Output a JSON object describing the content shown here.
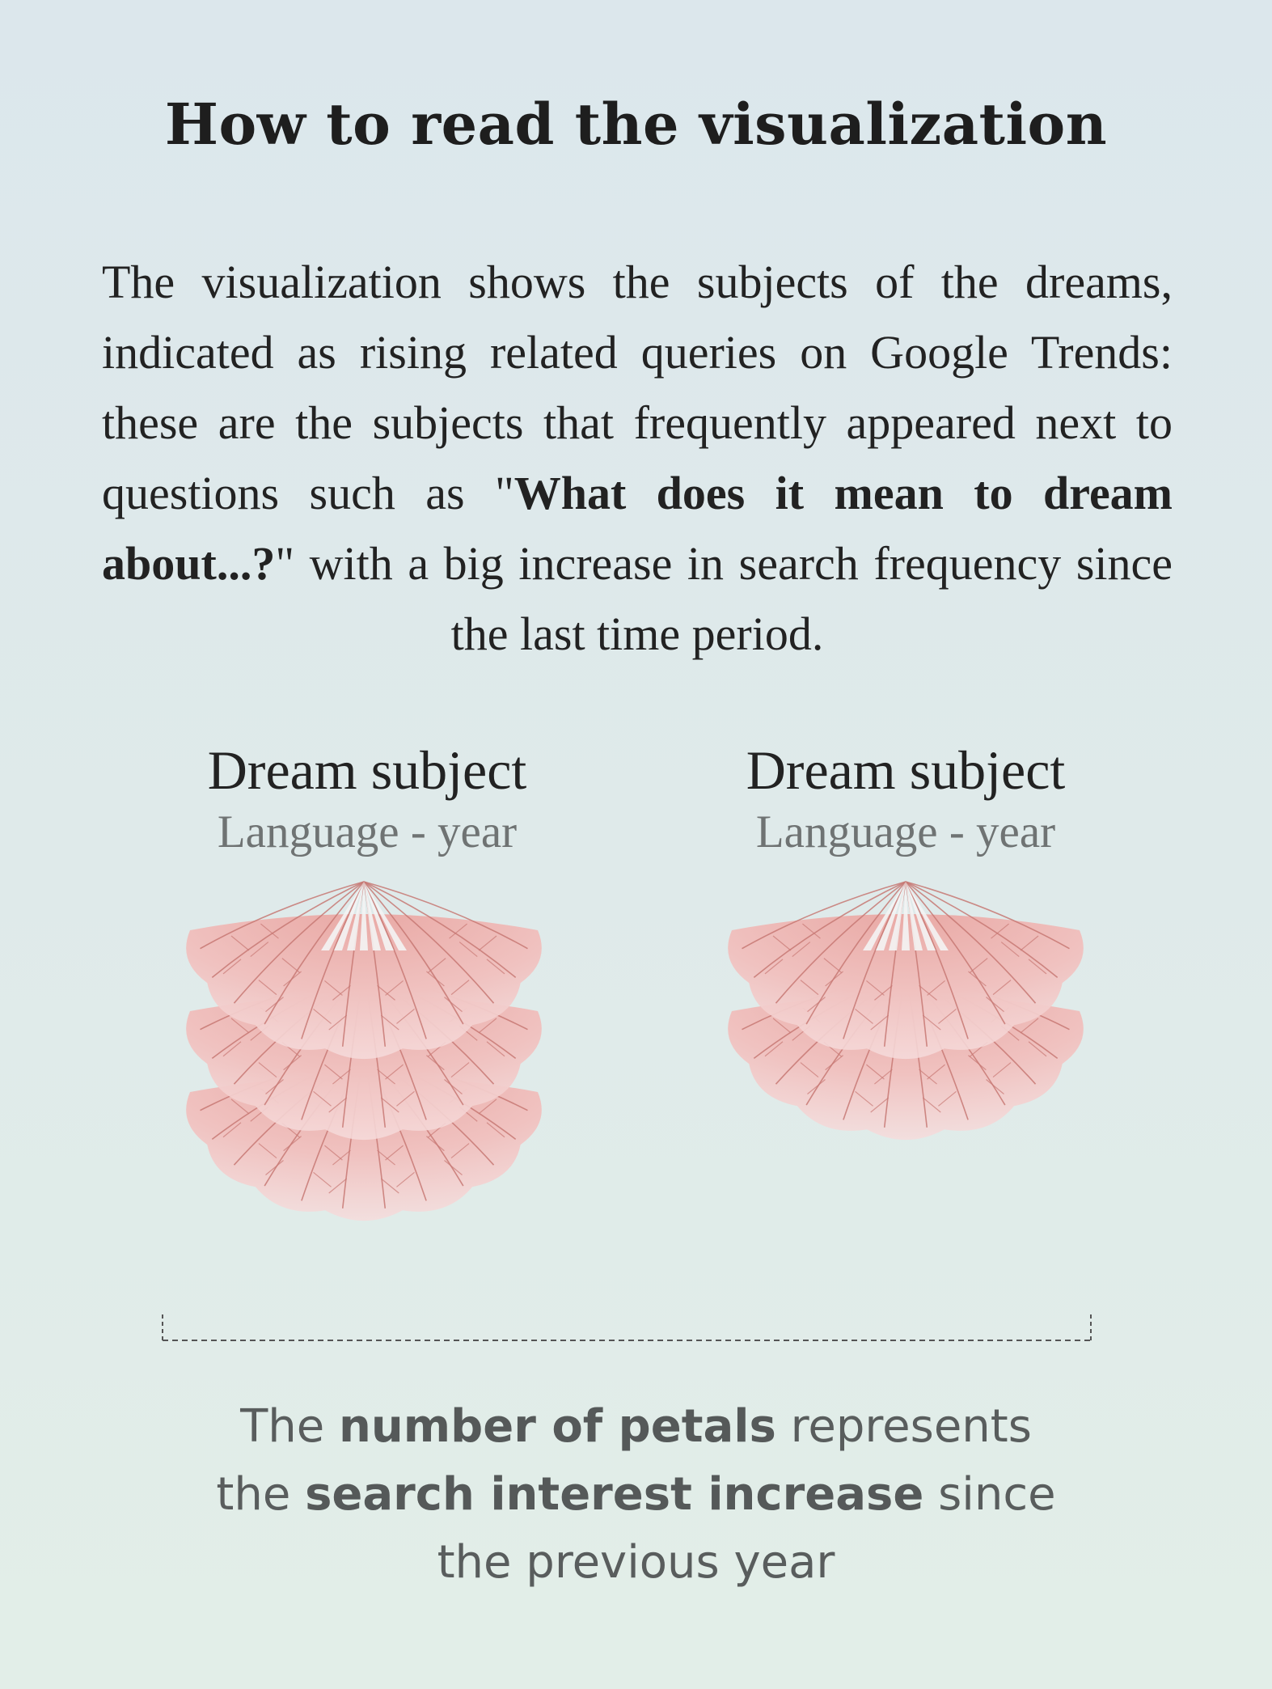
{
  "title": "How to read the visualization",
  "intro": {
    "part1": "The visualization shows the subjects of the dreams, indicated as rising related queries on Google Trends: these are the subjects that frequently appeared next to questions such as \"",
    "bold": "What does it mean to dream about...?",
    "part2": "\" with a big increase in search frequency since the last time period."
  },
  "examples": [
    {
      "subject": "Dream subject",
      "language_year": "Language - year",
      "petal_layers": 3
    },
    {
      "subject": "Dream subject",
      "language_year": "Language - year",
      "petal_layers": 2
    }
  ],
  "caption": {
    "t1": "The ",
    "b1": "number of petals",
    "t2": " represents",
    "t3": "the ",
    "b2": "search interest increase",
    "t4": " since",
    "t5": "the previous year"
  },
  "colors": {
    "petal_fill": "#f0c2c0",
    "petal_vein": "#c77873",
    "petal_edge": "#f6dcdc"
  }
}
